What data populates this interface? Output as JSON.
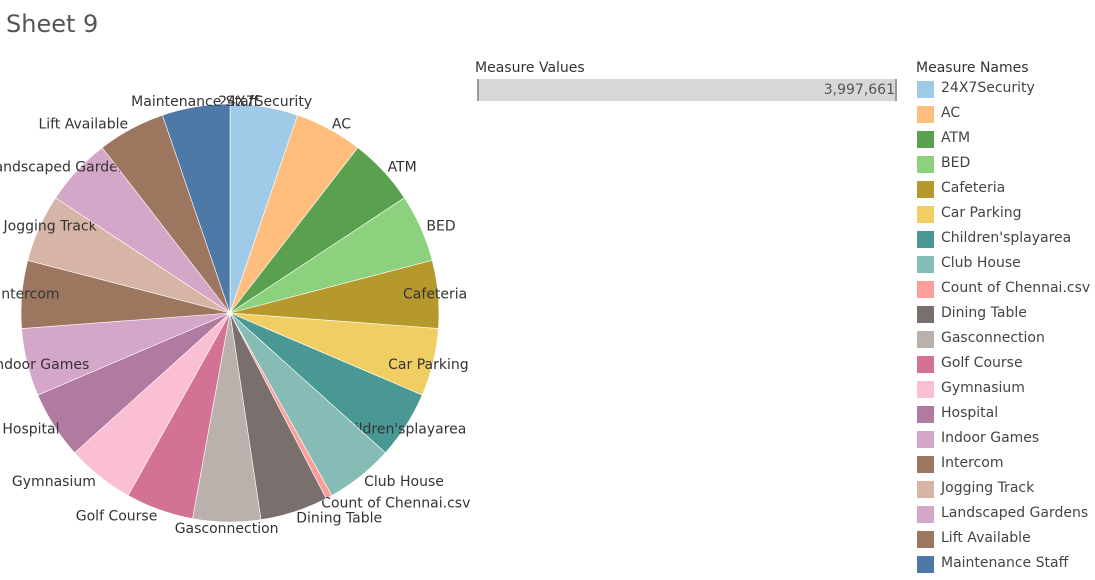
{
  "sheet": {
    "title": "Sheet 9"
  },
  "measure_values": {
    "title": "Measure Values",
    "value_label": "3,997,661",
    "value": 3997661,
    "fill_fraction": 1.0
  },
  "legend": {
    "title": "Measure Names"
  },
  "chart_data": {
    "type": "pie",
    "categories": [
      "24X7Security",
      "AC",
      "ATM",
      "BED",
      "Cafeteria",
      "Car Parking",
      "Children'splayarea",
      "Club House",
      "Count of Chennai.csv",
      "Dining Table",
      "Gasconnection",
      "Golf Course",
      "Gymnasium",
      "Hospital",
      "Indoor Games",
      "Intercom",
      "Jogging Track",
      "Landscaped Gardens",
      "Lift Available",
      "Maintenance Staff"
    ],
    "values": [
      5.24,
      5.24,
      5.24,
      5.24,
      5.24,
      5.24,
      5.24,
      5.24,
      0.5,
      5.24,
      5.24,
      5.24,
      5.24,
      5.24,
      5.24,
      5.24,
      5.24,
      5.24,
      5.24,
      5.24
    ],
    "colors": [
      "#9fcae8",
      "#ffbe7d",
      "#59a14f",
      "#8cd17d",
      "#b6992d",
      "#f1ce63",
      "#499894",
      "#86bcb6",
      "#ff9d9a",
      "#79706e",
      "#bab0ac",
      "#d37295",
      "#fabfd2",
      "#b07aa1",
      "#d4a6c8",
      "#9d7660",
      "#d7b5a6",
      "#d4a6c8",
      "#9d7660",
      "#4e79a7"
    ],
    "legend_position": "right"
  }
}
